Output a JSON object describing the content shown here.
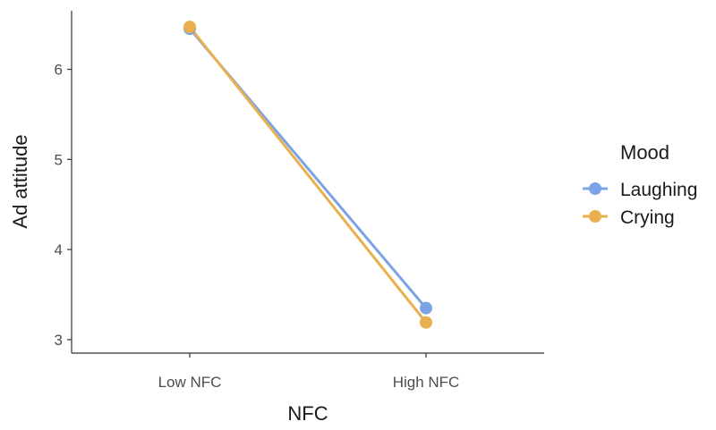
{
  "chart_data": {
    "type": "line",
    "title": "",
    "xlabel": "NFC",
    "ylabel": "Ad attitude",
    "categories": [
      "Low NFC",
      "High NFC"
    ],
    "ylim": [
      2.85,
      6.65
    ],
    "yticks": [
      3,
      4,
      5,
      6
    ],
    "grid": false,
    "legend_title": "Mood",
    "legend_position": "right",
    "series": [
      {
        "name": "Laughing",
        "color": "#7ba3e6",
        "values": [
          6.45,
          3.35
        ]
      },
      {
        "name": "Crying",
        "color": "#e8b04e",
        "values": [
          6.47,
          3.19
        ]
      }
    ]
  }
}
